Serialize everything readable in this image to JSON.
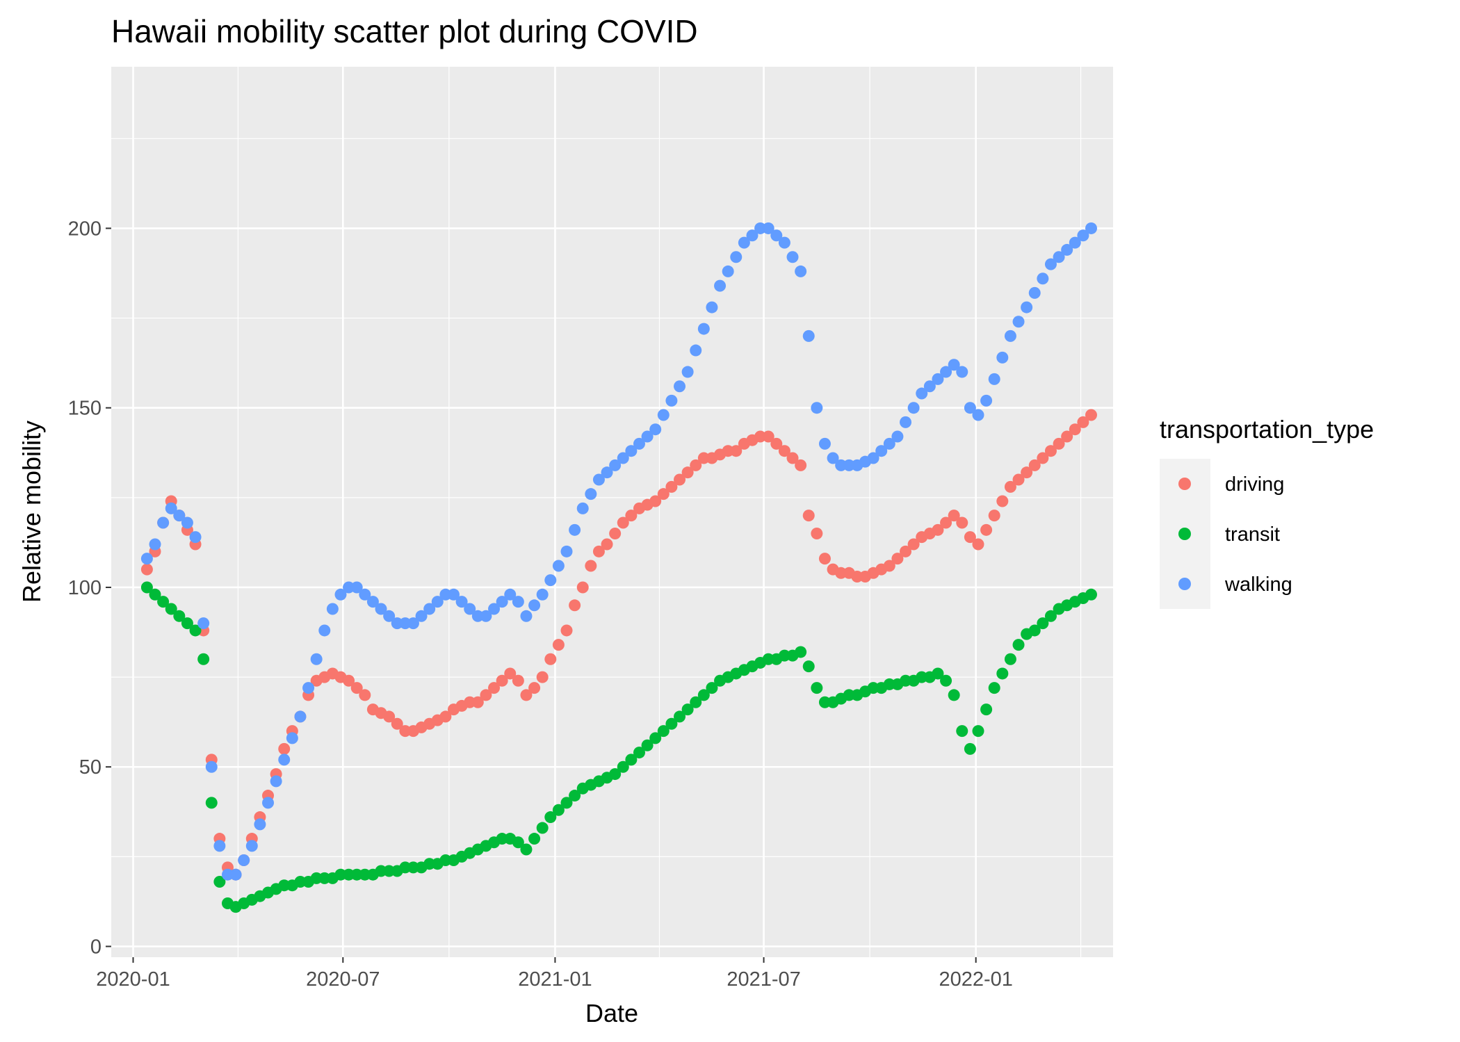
{
  "chart_data": {
    "type": "scatter",
    "title": "Hawaii mobility scatter plot during COVID",
    "xlabel": "Date",
    "ylabel": "Relative mobility",
    "x_scale": "date",
    "xlim": [
      "2019-12-13",
      "2022-04-30"
    ],
    "ylim": [
      -3,
      245
    ],
    "x_ticks": [
      {
        "date": "2020-01-01",
        "label": "2020-01"
      },
      {
        "date": "2020-07-01",
        "label": "2020-07"
      },
      {
        "date": "2021-01-01",
        "label": "2021-01"
      },
      {
        "date": "2021-07-01",
        "label": "2021-07"
      },
      {
        "date": "2022-01-01",
        "label": "2022-01"
      }
    ],
    "y_ticks": [
      0,
      50,
      100,
      150,
      200
    ],
    "grid": true,
    "legend": {
      "title": "transportation_type",
      "position": "right"
    },
    "series": [
      {
        "name": "driving",
        "color": "#F8766D",
        "x": [
          "2020-01-13",
          "2020-01-20",
          "2020-01-27",
          "2020-02-03",
          "2020-02-10",
          "2020-02-17",
          "2020-02-24",
          "2020-03-02",
          "2020-03-09",
          "2020-03-16",
          "2020-03-23",
          "2020-03-30",
          "2020-04-06",
          "2020-04-13",
          "2020-04-20",
          "2020-04-27",
          "2020-05-04",
          "2020-05-11",
          "2020-05-18",
          "2020-05-25",
          "2020-06-01",
          "2020-06-08",
          "2020-06-15",
          "2020-06-22",
          "2020-06-29",
          "2020-07-06",
          "2020-07-13",
          "2020-07-20",
          "2020-07-27",
          "2020-08-03",
          "2020-08-10",
          "2020-08-17",
          "2020-08-24",
          "2020-08-31",
          "2020-09-07",
          "2020-09-14",
          "2020-09-21",
          "2020-09-28",
          "2020-10-05",
          "2020-10-12",
          "2020-10-19",
          "2020-10-26",
          "2020-11-02",
          "2020-11-09",
          "2020-11-16",
          "2020-11-23",
          "2020-11-30",
          "2020-12-07",
          "2020-12-14",
          "2020-12-21",
          "2020-12-28",
          "2021-01-04",
          "2021-01-11",
          "2021-01-18",
          "2021-01-25",
          "2021-02-01",
          "2021-02-08",
          "2021-02-15",
          "2021-02-22",
          "2021-03-01",
          "2021-03-08",
          "2021-03-15",
          "2021-03-22",
          "2021-03-29",
          "2021-04-05",
          "2021-04-12",
          "2021-04-19",
          "2021-04-26",
          "2021-05-03",
          "2021-05-10",
          "2021-05-17",
          "2021-05-24",
          "2021-05-31",
          "2021-06-07",
          "2021-06-14",
          "2021-06-21",
          "2021-06-28",
          "2021-07-05",
          "2021-07-12",
          "2021-07-19",
          "2021-07-26",
          "2021-08-02",
          "2021-08-09",
          "2021-08-16",
          "2021-08-23",
          "2021-08-30",
          "2021-09-06",
          "2021-09-13",
          "2021-09-20",
          "2021-09-27",
          "2021-10-04",
          "2021-10-11",
          "2021-10-18",
          "2021-10-25",
          "2021-11-01",
          "2021-11-08",
          "2021-11-15",
          "2021-11-22",
          "2021-11-29",
          "2021-12-06",
          "2021-12-13",
          "2021-12-20",
          "2021-12-27",
          "2022-01-03",
          "2022-01-10",
          "2022-01-17",
          "2022-01-24",
          "2022-01-31",
          "2022-02-07",
          "2022-02-14",
          "2022-02-21",
          "2022-02-28",
          "2022-03-07",
          "2022-03-14",
          "2022-03-21",
          "2022-03-28",
          "2022-04-04",
          "2022-04-11"
        ],
        "y": [
          105,
          110,
          118,
          124,
          120,
          116,
          112,
          88,
          52,
          30,
          22,
          20,
          24,
          30,
          36,
          42,
          48,
          55,
          60,
          64,
          70,
          74,
          75,
          76,
          75,
          74,
          72,
          70,
          66,
          65,
          64,
          62,
          60,
          60,
          61,
          62,
          63,
          64,
          66,
          67,
          68,
          68,
          70,
          72,
          74,
          76,
          74,
          70,
          72,
          75,
          80,
          84,
          88,
          95,
          100,
          106,
          110,
          112,
          115,
          118,
          120,
          122,
          123,
          124,
          126,
          128,
          130,
          132,
          134,
          136,
          136,
          137,
          138,
          138,
          140,
          141,
          142,
          142,
          140,
          138,
          136,
          134,
          120,
          115,
          108,
          105,
          104,
          104,
          103,
          103,
          104,
          105,
          106,
          108,
          110,
          112,
          114,
          115,
          116,
          118,
          120,
          118,
          114,
          112,
          116,
          120,
          124,
          128,
          130,
          132,
          134,
          136,
          138,
          140,
          142,
          144,
          146,
          148
        ]
      },
      {
        "name": "transit",
        "color": "#00BA38",
        "x": [
          "2020-01-13",
          "2020-01-20",
          "2020-01-27",
          "2020-02-03",
          "2020-02-10",
          "2020-02-17",
          "2020-02-24",
          "2020-03-02",
          "2020-03-09",
          "2020-03-16",
          "2020-03-23",
          "2020-03-30",
          "2020-04-06",
          "2020-04-13",
          "2020-04-20",
          "2020-04-27",
          "2020-05-04",
          "2020-05-11",
          "2020-05-18",
          "2020-05-25",
          "2020-06-01",
          "2020-06-08",
          "2020-06-15",
          "2020-06-22",
          "2020-06-29",
          "2020-07-06",
          "2020-07-13",
          "2020-07-20",
          "2020-07-27",
          "2020-08-03",
          "2020-08-10",
          "2020-08-17",
          "2020-08-24",
          "2020-08-31",
          "2020-09-07",
          "2020-09-14",
          "2020-09-21",
          "2020-09-28",
          "2020-10-05",
          "2020-10-12",
          "2020-10-19",
          "2020-10-26",
          "2020-11-02",
          "2020-11-09",
          "2020-11-16",
          "2020-11-23",
          "2020-11-30",
          "2020-12-07",
          "2020-12-14",
          "2020-12-21",
          "2020-12-28",
          "2021-01-04",
          "2021-01-11",
          "2021-01-18",
          "2021-01-25",
          "2021-02-01",
          "2021-02-08",
          "2021-02-15",
          "2021-02-22",
          "2021-03-01",
          "2021-03-08",
          "2021-03-15",
          "2021-03-22",
          "2021-03-29",
          "2021-04-05",
          "2021-04-12",
          "2021-04-19",
          "2021-04-26",
          "2021-05-03",
          "2021-05-10",
          "2021-05-17",
          "2021-05-24",
          "2021-05-31",
          "2021-06-07",
          "2021-06-14",
          "2021-06-21",
          "2021-06-28",
          "2021-07-05",
          "2021-07-12",
          "2021-07-19",
          "2021-07-26",
          "2021-08-02",
          "2021-08-09",
          "2021-08-16",
          "2021-08-23",
          "2021-08-30",
          "2021-09-06",
          "2021-09-13",
          "2021-09-20",
          "2021-09-27",
          "2021-10-04",
          "2021-10-11",
          "2021-10-18",
          "2021-10-25",
          "2021-11-01",
          "2021-11-08",
          "2021-11-15",
          "2021-11-22",
          "2021-11-29",
          "2021-12-06",
          "2021-12-13",
          "2021-12-20",
          "2021-12-27",
          "2022-01-03",
          "2022-01-10",
          "2022-01-17",
          "2022-01-24",
          "2022-01-31",
          "2022-02-07",
          "2022-02-14",
          "2022-02-21",
          "2022-02-28",
          "2022-03-07",
          "2022-03-14",
          "2022-03-21",
          "2022-03-28",
          "2022-04-04",
          "2022-04-11"
        ],
        "y": [
          100,
          98,
          96,
          94,
          92,
          90,
          88,
          80,
          40,
          18,
          12,
          11,
          12,
          13,
          14,
          15,
          16,
          17,
          17,
          18,
          18,
          19,
          19,
          19,
          20,
          20,
          20,
          20,
          20,
          21,
          21,
          21,
          22,
          22,
          22,
          23,
          23,
          24,
          24,
          25,
          26,
          27,
          28,
          29,
          30,
          30,
          29,
          27,
          30,
          33,
          36,
          38,
          40,
          42,
          44,
          45,
          46,
          47,
          48,
          50,
          52,
          54,
          56,
          58,
          60,
          62,
          64,
          66,
          68,
          70,
          72,
          74,
          75,
          76,
          77,
          78,
          79,
          80,
          80,
          81,
          81,
          82,
          78,
          72,
          68,
          68,
          69,
          70,
          70,
          71,
          72,
          72,
          73,
          73,
          74,
          74,
          75,
          75,
          76,
          74,
          70,
          60,
          55,
          60,
          66,
          72,
          76,
          80,
          84,
          87,
          88,
          90,
          92,
          94,
          95,
          96,
          97,
          98
        ]
      },
      {
        "name": "walking",
        "color": "#619CFF",
        "x": [
          "2020-01-13",
          "2020-01-20",
          "2020-01-27",
          "2020-02-03",
          "2020-02-10",
          "2020-02-17",
          "2020-02-24",
          "2020-03-02",
          "2020-03-09",
          "2020-03-16",
          "2020-03-23",
          "2020-03-30",
          "2020-04-06",
          "2020-04-13",
          "2020-04-20",
          "2020-04-27",
          "2020-05-04",
          "2020-05-11",
          "2020-05-18",
          "2020-05-25",
          "2020-06-01",
          "2020-06-08",
          "2020-06-15",
          "2020-06-22",
          "2020-06-29",
          "2020-07-06",
          "2020-07-13",
          "2020-07-20",
          "2020-07-27",
          "2020-08-03",
          "2020-08-10",
          "2020-08-17",
          "2020-08-24",
          "2020-08-31",
          "2020-09-07",
          "2020-09-14",
          "2020-09-21",
          "2020-09-28",
          "2020-10-05",
          "2020-10-12",
          "2020-10-19",
          "2020-10-26",
          "2020-11-02",
          "2020-11-09",
          "2020-11-16",
          "2020-11-23",
          "2020-11-30",
          "2020-12-07",
          "2020-12-14",
          "2020-12-21",
          "2020-12-28",
          "2021-01-04",
          "2021-01-11",
          "2021-01-18",
          "2021-01-25",
          "2021-02-01",
          "2021-02-08",
          "2021-02-15",
          "2021-02-22",
          "2021-03-01",
          "2021-03-08",
          "2021-03-15",
          "2021-03-22",
          "2021-03-29",
          "2021-04-05",
          "2021-04-12",
          "2021-04-19",
          "2021-04-26",
          "2021-05-03",
          "2021-05-10",
          "2021-05-17",
          "2021-05-24",
          "2021-05-31",
          "2021-06-07",
          "2021-06-14",
          "2021-06-21",
          "2021-06-28",
          "2021-07-05",
          "2021-07-12",
          "2021-07-19",
          "2021-07-26",
          "2021-08-02",
          "2021-08-09",
          "2021-08-16",
          "2021-08-23",
          "2021-08-30",
          "2021-09-06",
          "2021-09-13",
          "2021-09-20",
          "2021-09-27",
          "2021-10-04",
          "2021-10-11",
          "2021-10-18",
          "2021-10-25",
          "2021-11-01",
          "2021-11-08",
          "2021-11-15",
          "2021-11-22",
          "2021-11-29",
          "2021-12-06",
          "2021-12-13",
          "2021-12-20",
          "2021-12-27",
          "2022-01-03",
          "2022-01-10",
          "2022-01-17",
          "2022-01-24",
          "2022-01-31",
          "2022-02-07",
          "2022-02-14",
          "2022-02-21",
          "2022-02-28",
          "2022-03-07",
          "2022-03-14",
          "2022-03-21",
          "2022-03-28",
          "2022-04-04",
          "2022-04-11"
        ],
        "y": [
          108,
          112,
          118,
          122,
          120,
          118,
          114,
          90,
          50,
          28,
          20,
          20,
          24,
          28,
          34,
          40,
          46,
          52,
          58,
          64,
          72,
          80,
          88,
          94,
          98,
          100,
          100,
          98,
          96,
          94,
          92,
          90,
          90,
          90,
          92,
          94,
          96,
          98,
          98,
          96,
          94,
          92,
          92,
          94,
          96,
          98,
          96,
          92,
          95,
          98,
          102,
          106,
          110,
          116,
          122,
          126,
          130,
          132,
          134,
          136,
          138,
          140,
          142,
          144,
          148,
          152,
          156,
          160,
          166,
          172,
          178,
          184,
          188,
          192,
          196,
          198,
          200,
          200,
          198,
          196,
          192,
          188,
          170,
          150,
          140,
          136,
          134,
          134,
          134,
          135,
          136,
          138,
          140,
          142,
          146,
          150,
          154,
          156,
          158,
          160,
          162,
          160,
          150,
          148,
          152,
          158,
          164,
          170,
          174,
          178,
          182,
          186,
          190,
          192,
          194,
          196,
          198,
          200
        ]
      }
    ]
  }
}
